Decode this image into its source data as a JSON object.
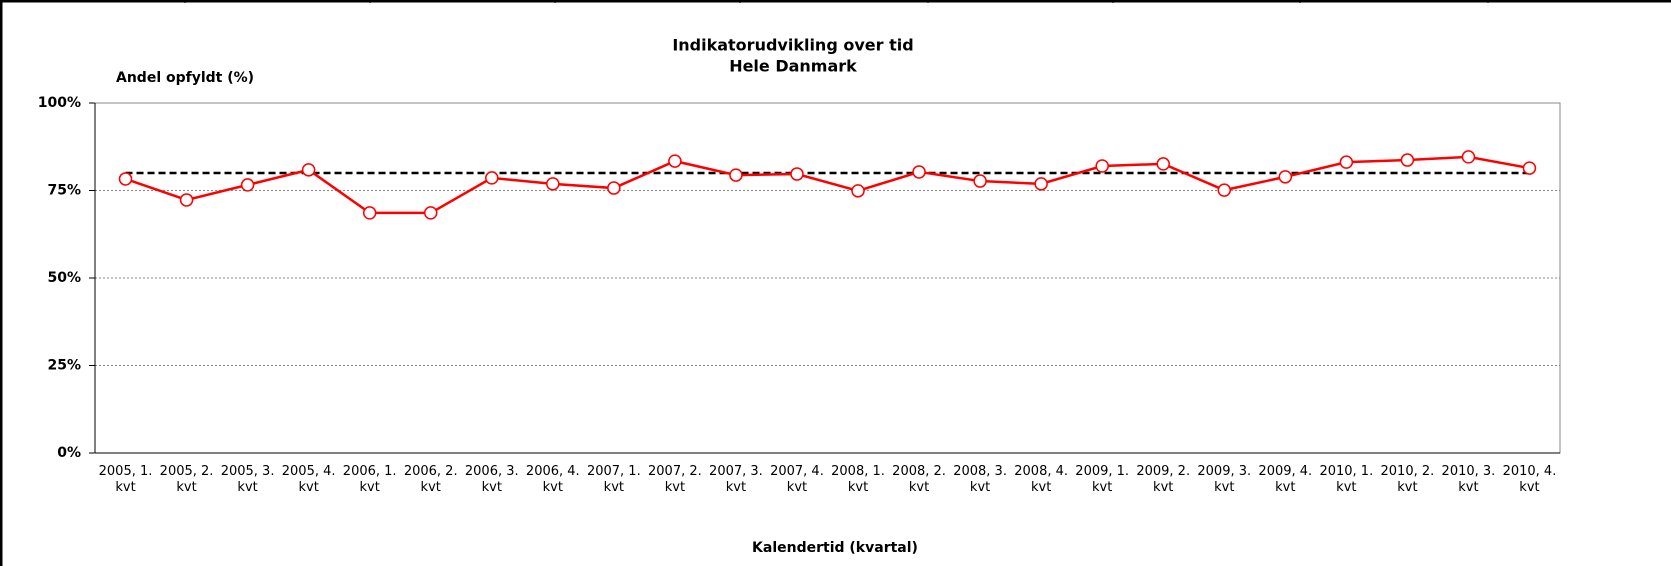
{
  "chart_data": {
    "type": "line",
    "title": "Indikatorudvikling over tid",
    "subtitle": "Hele Danmark",
    "ylabel": "Andel opfyldt (%)",
    "xlabel": "Kalendertid (kvartal)",
    "categories": [
      "2005, 1. kvt",
      "2005, 2. kvt",
      "2005, 3. kvt",
      "2005, 4. kvt",
      "2006, 1. kvt",
      "2006, 2. kvt",
      "2006, 3. kvt",
      "2006, 4. kvt",
      "2007, 1. kvt",
      "2007, 2. kvt",
      "2007, 3. kvt",
      "2007, 4. kvt",
      "2008, 1. kvt",
      "2008, 2. kvt",
      "2008, 3. kvt",
      "2008, 4. kvt",
      "2009, 1. kvt",
      "2009, 2. kvt",
      "2009, 3. kvt",
      "2009, 4. kvt",
      "2010, 1. kvt",
      "2010, 2. kvt",
      "2010, 3. kvt",
      "2010, 4. kvt"
    ],
    "series": [
      {
        "color": "#ff0000",
        "values": [
          78.3,
          72.3,
          76.6,
          80.9,
          68.6,
          68.6,
          78.6,
          76.9,
          75.7,
          83.4,
          79.4,
          79.7,
          74.9,
          80.3,
          77.7,
          76.9,
          82.0,
          82.6,
          75.1,
          78.9,
          83.1,
          83.7,
          84.6,
          81.4
        ]
      }
    ],
    "target": 80,
    "target_color": "#000000",
    "ylim": [
      0,
      100
    ],
    "yticks": [
      {
        "value": 0,
        "label": "0%"
      },
      {
        "value": 25,
        "label": "25%"
      },
      {
        "value": 50,
        "label": "50%"
      },
      {
        "value": 75,
        "label": "75%"
      },
      {
        "value": 100,
        "label": "100%"
      }
    ],
    "grid": true
  }
}
